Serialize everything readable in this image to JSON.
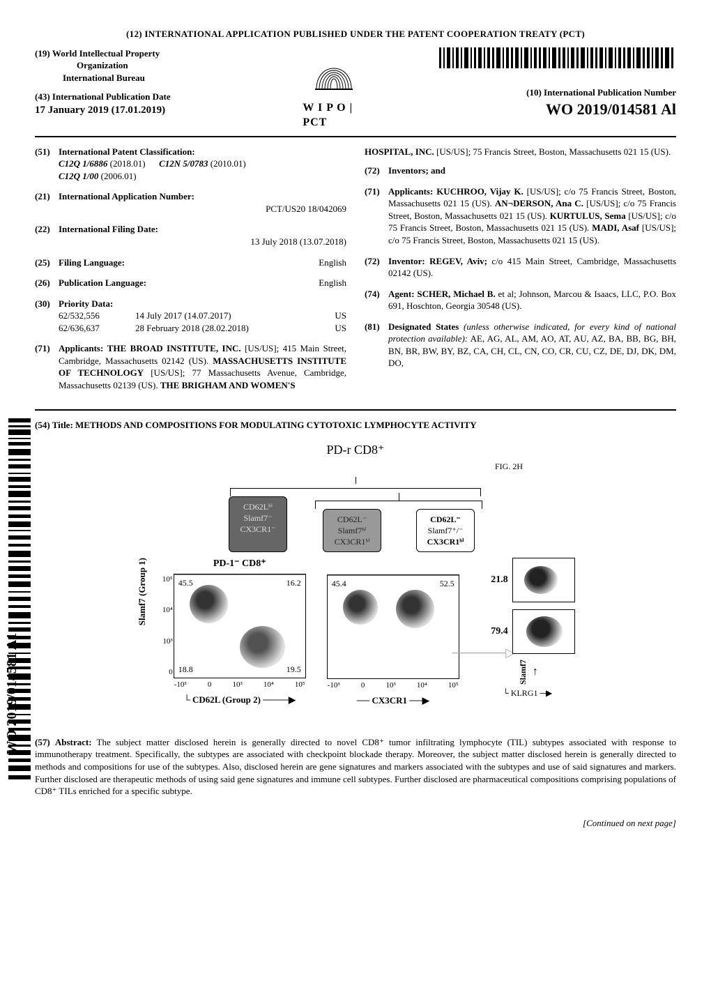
{
  "top_banner": "(12) INTERNATIONAL  APPLICATION  PUBLISHED  UNDER  THE  PATENT  COOPERATION  TREATY  (PCT)",
  "header": {
    "sec19_num": "(19)",
    "sec19_text": "World Intellectual  Property",
    "org_line2": "Organization",
    "ib": "International Bureau",
    "sec43_num": "(43)",
    "sec43_text": "International Publication Date",
    "pub_date": "17 January  2019 (17.01.2019)",
    "wipo_pct": "W I P O | PCT",
    "sec10_num": "(10)",
    "sec10_text": "International Publication Number",
    "pub_number": "WO 2019/014581 Al"
  },
  "left_col": {
    "f51": {
      "num": "(51)",
      "label": "International Patent Classification:",
      "codes": [
        {
          "code": "C12Q 1/6886",
          "year": "(2018.01)"
        },
        {
          "code": "C12N 5/0783",
          "year": "(2010.01)"
        },
        {
          "code": "C12Q 1/00",
          "year": "(2006.01)"
        }
      ]
    },
    "f21": {
      "num": "(21)",
      "label": "International Application Number:",
      "value": "PCT/US20 18/042069"
    },
    "f22": {
      "num": "(22)",
      "label": "International Filing Date:",
      "value": "13 July 2018 (13.07.2018)"
    },
    "f25": {
      "num": "(25)",
      "label": "Filing Language:",
      "value": "English"
    },
    "f26": {
      "num": "(26)",
      "label": "Publication Language:",
      "value": "English"
    },
    "f30": {
      "num": "(30)",
      "label": "Priority Data:",
      "rows": [
        {
          "a": "62/532,556",
          "b": "14 July 2017 (14.07.2017)",
          "c": "US"
        },
        {
          "a": "62/636,637",
          "b": "28 February 2018 (28.02.2018)",
          "c": "US"
        }
      ]
    },
    "f71": {
      "num": "(71)",
      "label": "Applicants:",
      "text": "THE BROAD INSTITUTE, INC. [US/US]; 415 Main Street, Cambridge, Massachusetts 02142 (US). MASSACHUSETTS  INSTITUTE  OF TECHNOLOGY [US/US]; 77 Massachusetts Avenue, Cambridge, Massachusetts 02139 (US). THE BRIGHAM  AND WOMEN'S"
    }
  },
  "right_col": {
    "hospital_cont": "HOSPITAL, INC. [US/US]; 75 Francis Street, Boston, Massachusetts 021 15 (US).",
    "f72": {
      "num": "(72)",
      "label": "Inventors; and"
    },
    "f71b": {
      "num": "(71)",
      "label": "Applicants:",
      "text": "KUCHROO,  Vijay  K. [US/US]; c/o 75 Francis Street, Boston, Massachusetts 021 15 (US). AN¬DERSON, Ana C. [US/US]; c/o 75 Francis Street, Boston, Massachusetts 021 15 (US). KURTULUS, Sema [US/US]; c/o 75 Francis Street, Boston, Massachusetts 021 15 (US). MADI, Asaf [US/US]; c/o 75 Francis Street, Boston, Massachusetts 021 15 (US)."
    },
    "f72b": {
      "num": "(72)",
      "label": "Inventor:",
      "text": "REGEV, Aviv; c/o 415 Main Street, Cambridge, Massachusetts 02142 (US)."
    },
    "f74": {
      "num": "(74)",
      "label": "Agent:",
      "text": "SCHER, Michael B. et al; Johnson, Marcou & Isaacs, LLC, P.O. Box 691, Hoschton, Georgia 30548 (US)."
    },
    "f81": {
      "num": "(81)",
      "label": "Designated States",
      "paren": "(unless otherwise indicated, for every kind of national protection available):",
      "text": "AE, AG, AL, AM, AO, AT, AU, AZ, BA, BB, BG, BH, BN, BR, BW, BY, BZ, CA, CH, CL, CN, CO, CR, CU, CZ, DE, DJ, DK, DM, DO,"
    }
  },
  "title54": {
    "num": "(54)",
    "label": "Title:",
    "text": "METHODS AND COMPOSITIONS FOR MODULATING CYTOTOXIC LYMPHOCYTE ACTIVITY"
  },
  "figure": {
    "top_label": "PD-r  CD8⁺",
    "fig_id": "FIG. 2H",
    "nodes": [
      {
        "l1": "CD62Lʰⁱ",
        "l2": "Slamf7⁻",
        "l3": "CX3CR1⁻",
        "shade": "shade1"
      },
      {
        "l1": "CD62L⁻",
        "l2": "Slamf7ʰⁱ",
        "l3": "CX3CR1ʰⁱ",
        "shade": "shade2"
      },
      {
        "l1": "CD62L⁻",
        "l2": "Slamf7⁺/⁻",
        "l3": "CX3CR1ʰⁱ",
        "shade": "shade3"
      }
    ],
    "plots": {
      "left": {
        "title": "PD-1⁻  CD8⁺",
        "yticks": [
          "10⁵",
          "10⁴",
          "10³",
          "0"
        ],
        "xticks": [
          "-10³",
          "0",
          "10³",
          "10⁴",
          "10⁵"
        ],
        "q_tl": "45.5",
        "q_tr": "16.2",
        "q_bl": "18.8",
        "q_br": "19.5",
        "ylab": "Slamf7 (Group 1)",
        "xlab": "CD62L (Group 2)"
      },
      "mid": {
        "xticks": [
          "-10³",
          "0",
          "10³",
          "10⁴",
          "10⁵"
        ],
        "q_tl": "45.4",
        "q_tr": "52.5",
        "xlab": "CX3CR1"
      },
      "right": {
        "vals": [
          "21.8",
          "79.4"
        ],
        "ylab": "Slamf7",
        "xlab": "KLRG1"
      }
    }
  },
  "abstract": {
    "num": "(57)",
    "label": "Abstract:",
    "text": "The subject matter disclosed herein is generally directed to novel CD8⁺ tumor infiltrating lymphocyte (TIL) subtypes associated with response to immunotherapy treatment. Specifically, the subtypes are associated with checkpoint blockade therapy. Moreover, the subject matter disclosed herein is generally directed to methods and compositions for use of the subtypes. Also, disclosed herein are gene signatures and markers associated with the subtypes and use of said signatures and markers. Further disclosed are therapeutic methods of using said gene signatures and immune cell subtypes. Further disclosed are pharmaceutical compositions comprising populations of CD8⁺ TILs enriched for a specific subtype."
  },
  "side_pubnum": "WO 2019/014581 A1",
  "footer": "[Continued on next page]",
  "colors": {
    "text": "#000000",
    "bg": "#ffffff",
    "rule": "#000000",
    "dash": "#888888",
    "shade1_bg": "#666666",
    "shade2_bg": "#999999"
  }
}
